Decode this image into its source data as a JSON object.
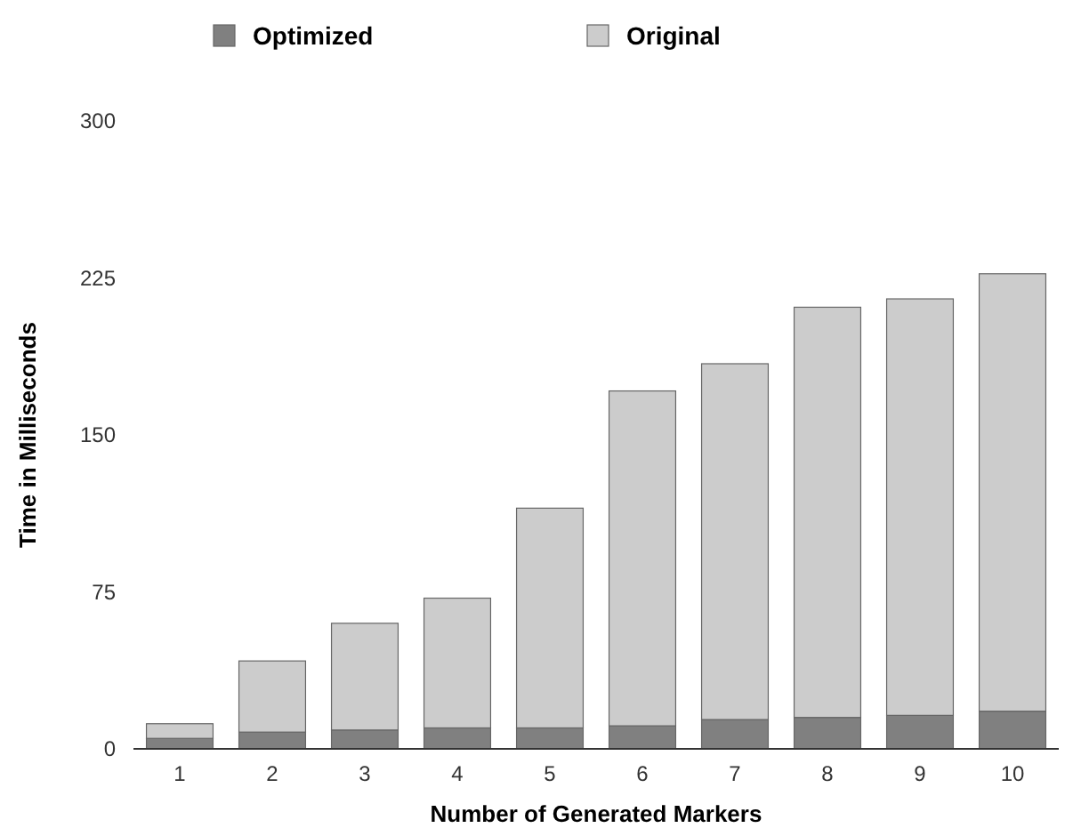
{
  "chart_data": {
    "type": "bar",
    "stacked": true,
    "xlabel": "Number of Generated Markers",
    "ylabel": "Time in Milliseconds",
    "categories": [
      "1",
      "2",
      "3",
      "4",
      "5",
      "6",
      "7",
      "8",
      "9",
      "10"
    ],
    "ylim": [
      0,
      300
    ],
    "yticks": [
      0,
      75,
      150,
      225,
      300
    ],
    "legend": "top",
    "series": [
      {
        "name": "Optimized",
        "color": "#808080",
        "values": [
          5,
          8,
          9,
          10,
          10,
          11,
          14,
          15,
          16,
          18
        ]
      },
      {
        "name": "Original",
        "color": "#cccccc",
        "values": [
          7,
          34,
          51,
          62,
          105,
          160,
          170,
          196,
          199,
          209
        ]
      }
    ]
  }
}
